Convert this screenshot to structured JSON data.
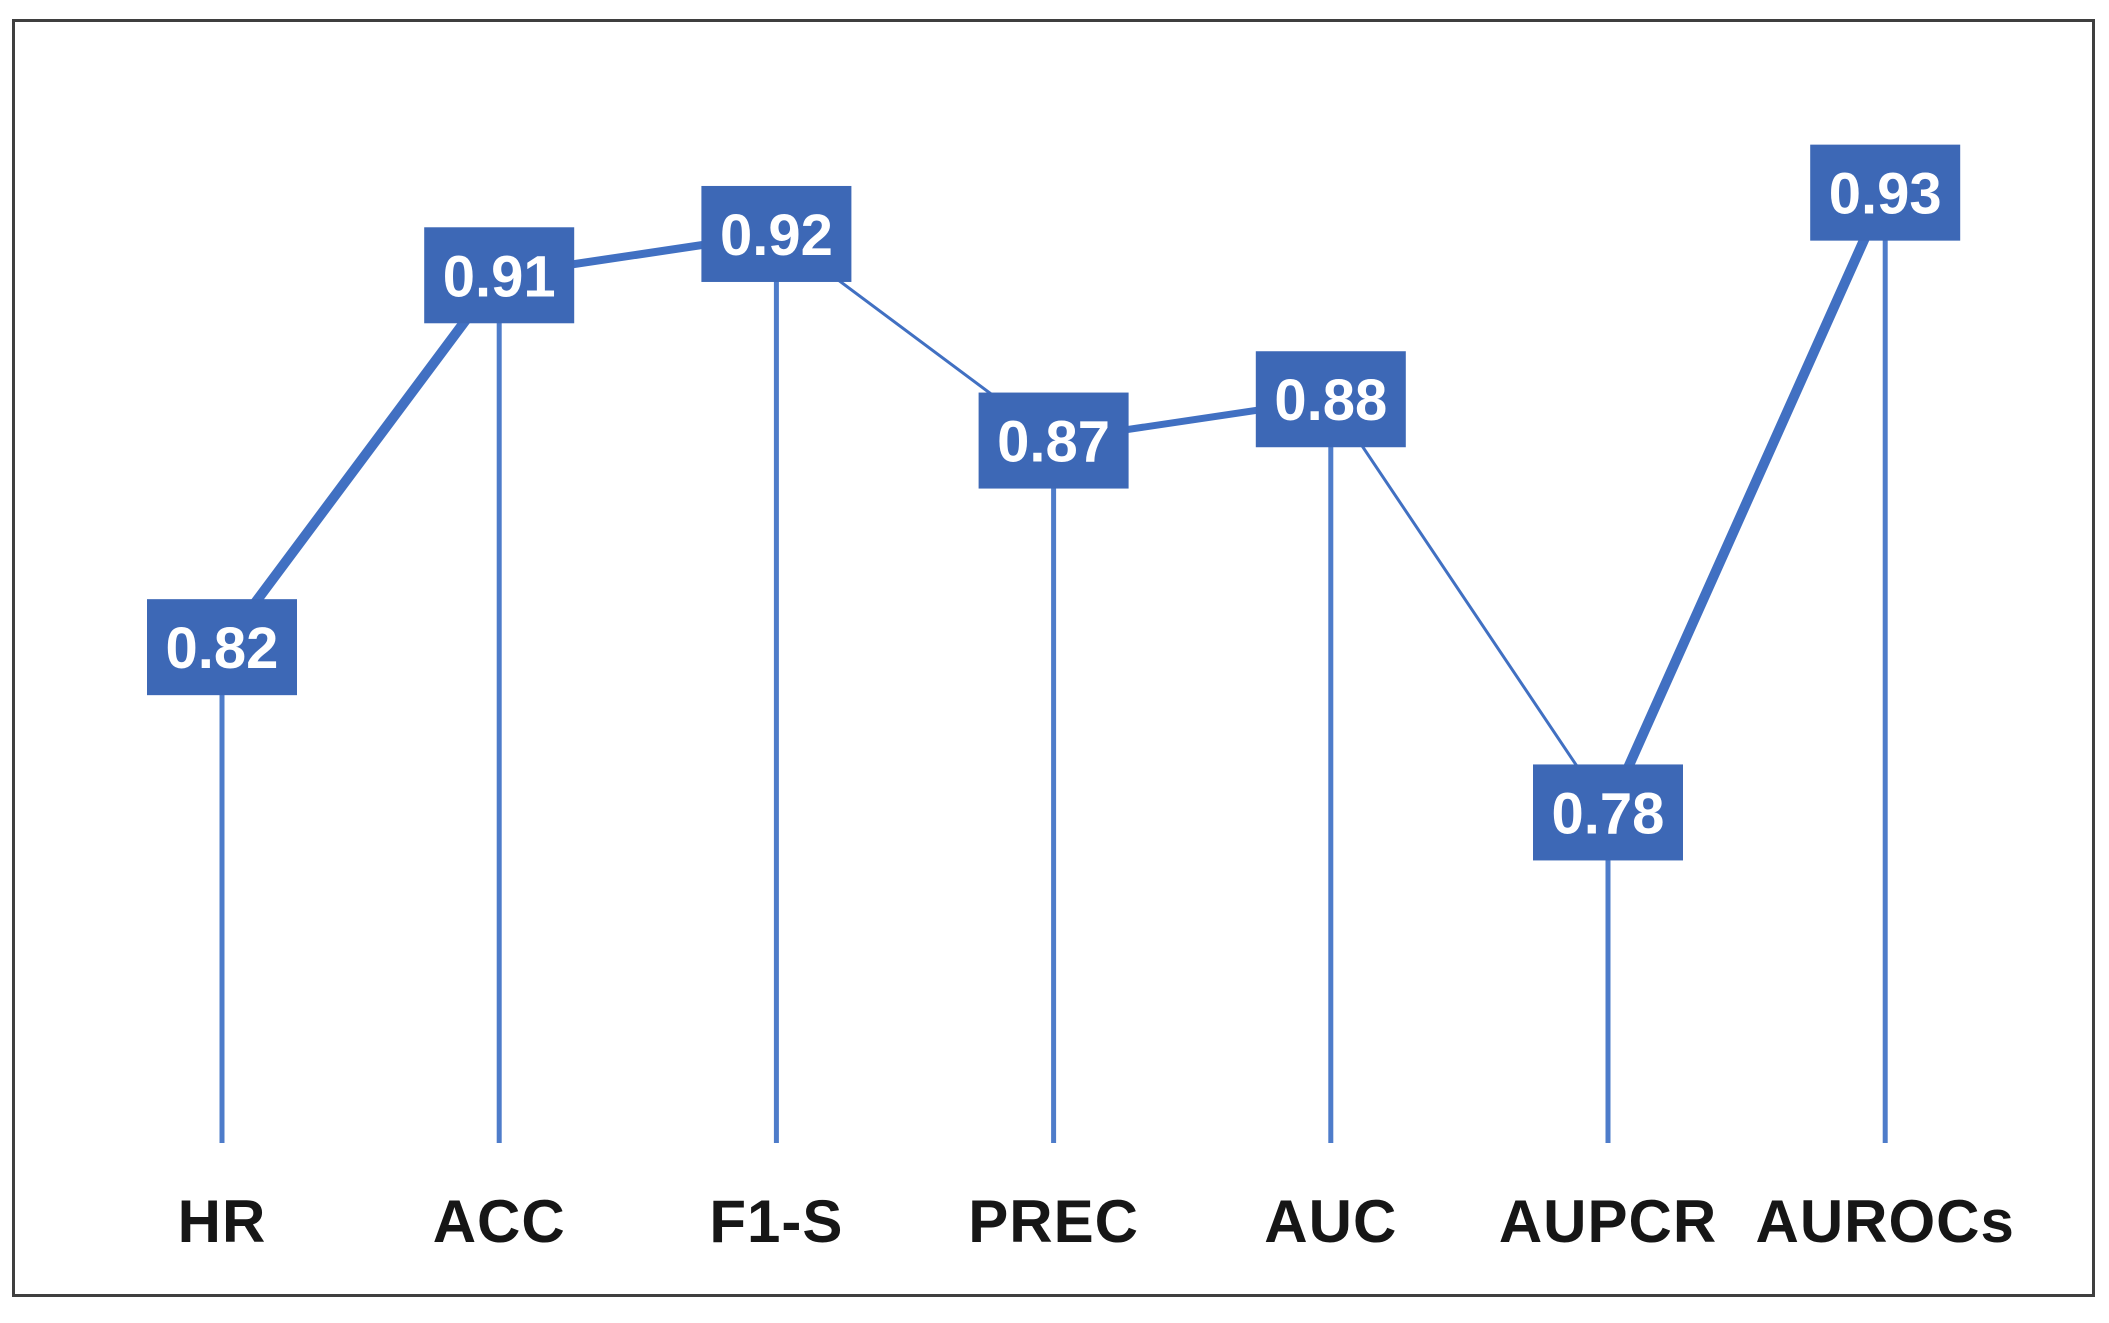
{
  "chart_data": {
    "type": "line",
    "title": "",
    "xlabel": "",
    "ylabel": "",
    "categories": [
      "HR",
      "ACC",
      "F1-S",
      "PREC",
      "AUC",
      "AUPCR",
      "AUROCs"
    ],
    "values": [
      0.82,
      0.91,
      0.92,
      0.87,
      0.88,
      0.78,
      0.93
    ],
    "data_labels": [
      "0.82",
      "0.91",
      "0.92",
      "0.87",
      "0.88",
      "0.78",
      "0.93"
    ],
    "ylim": [
      0.7,
      0.95
    ],
    "grid": false,
    "legend": false,
    "y_axis_visible": false,
    "x_axis_line_visible": false,
    "data_label_style": "filled-box-on-point",
    "drop_lines": true
  },
  "style": {
    "background_color": "#ffffff",
    "frame_color": "#3f3f3f",
    "label_box_color": "#3d68b6",
    "label_text_color": "#ffffff",
    "connector_color": "#4170c2",
    "dropline_color": "#4e7cca",
    "axis_label_color": "#161616"
  }
}
